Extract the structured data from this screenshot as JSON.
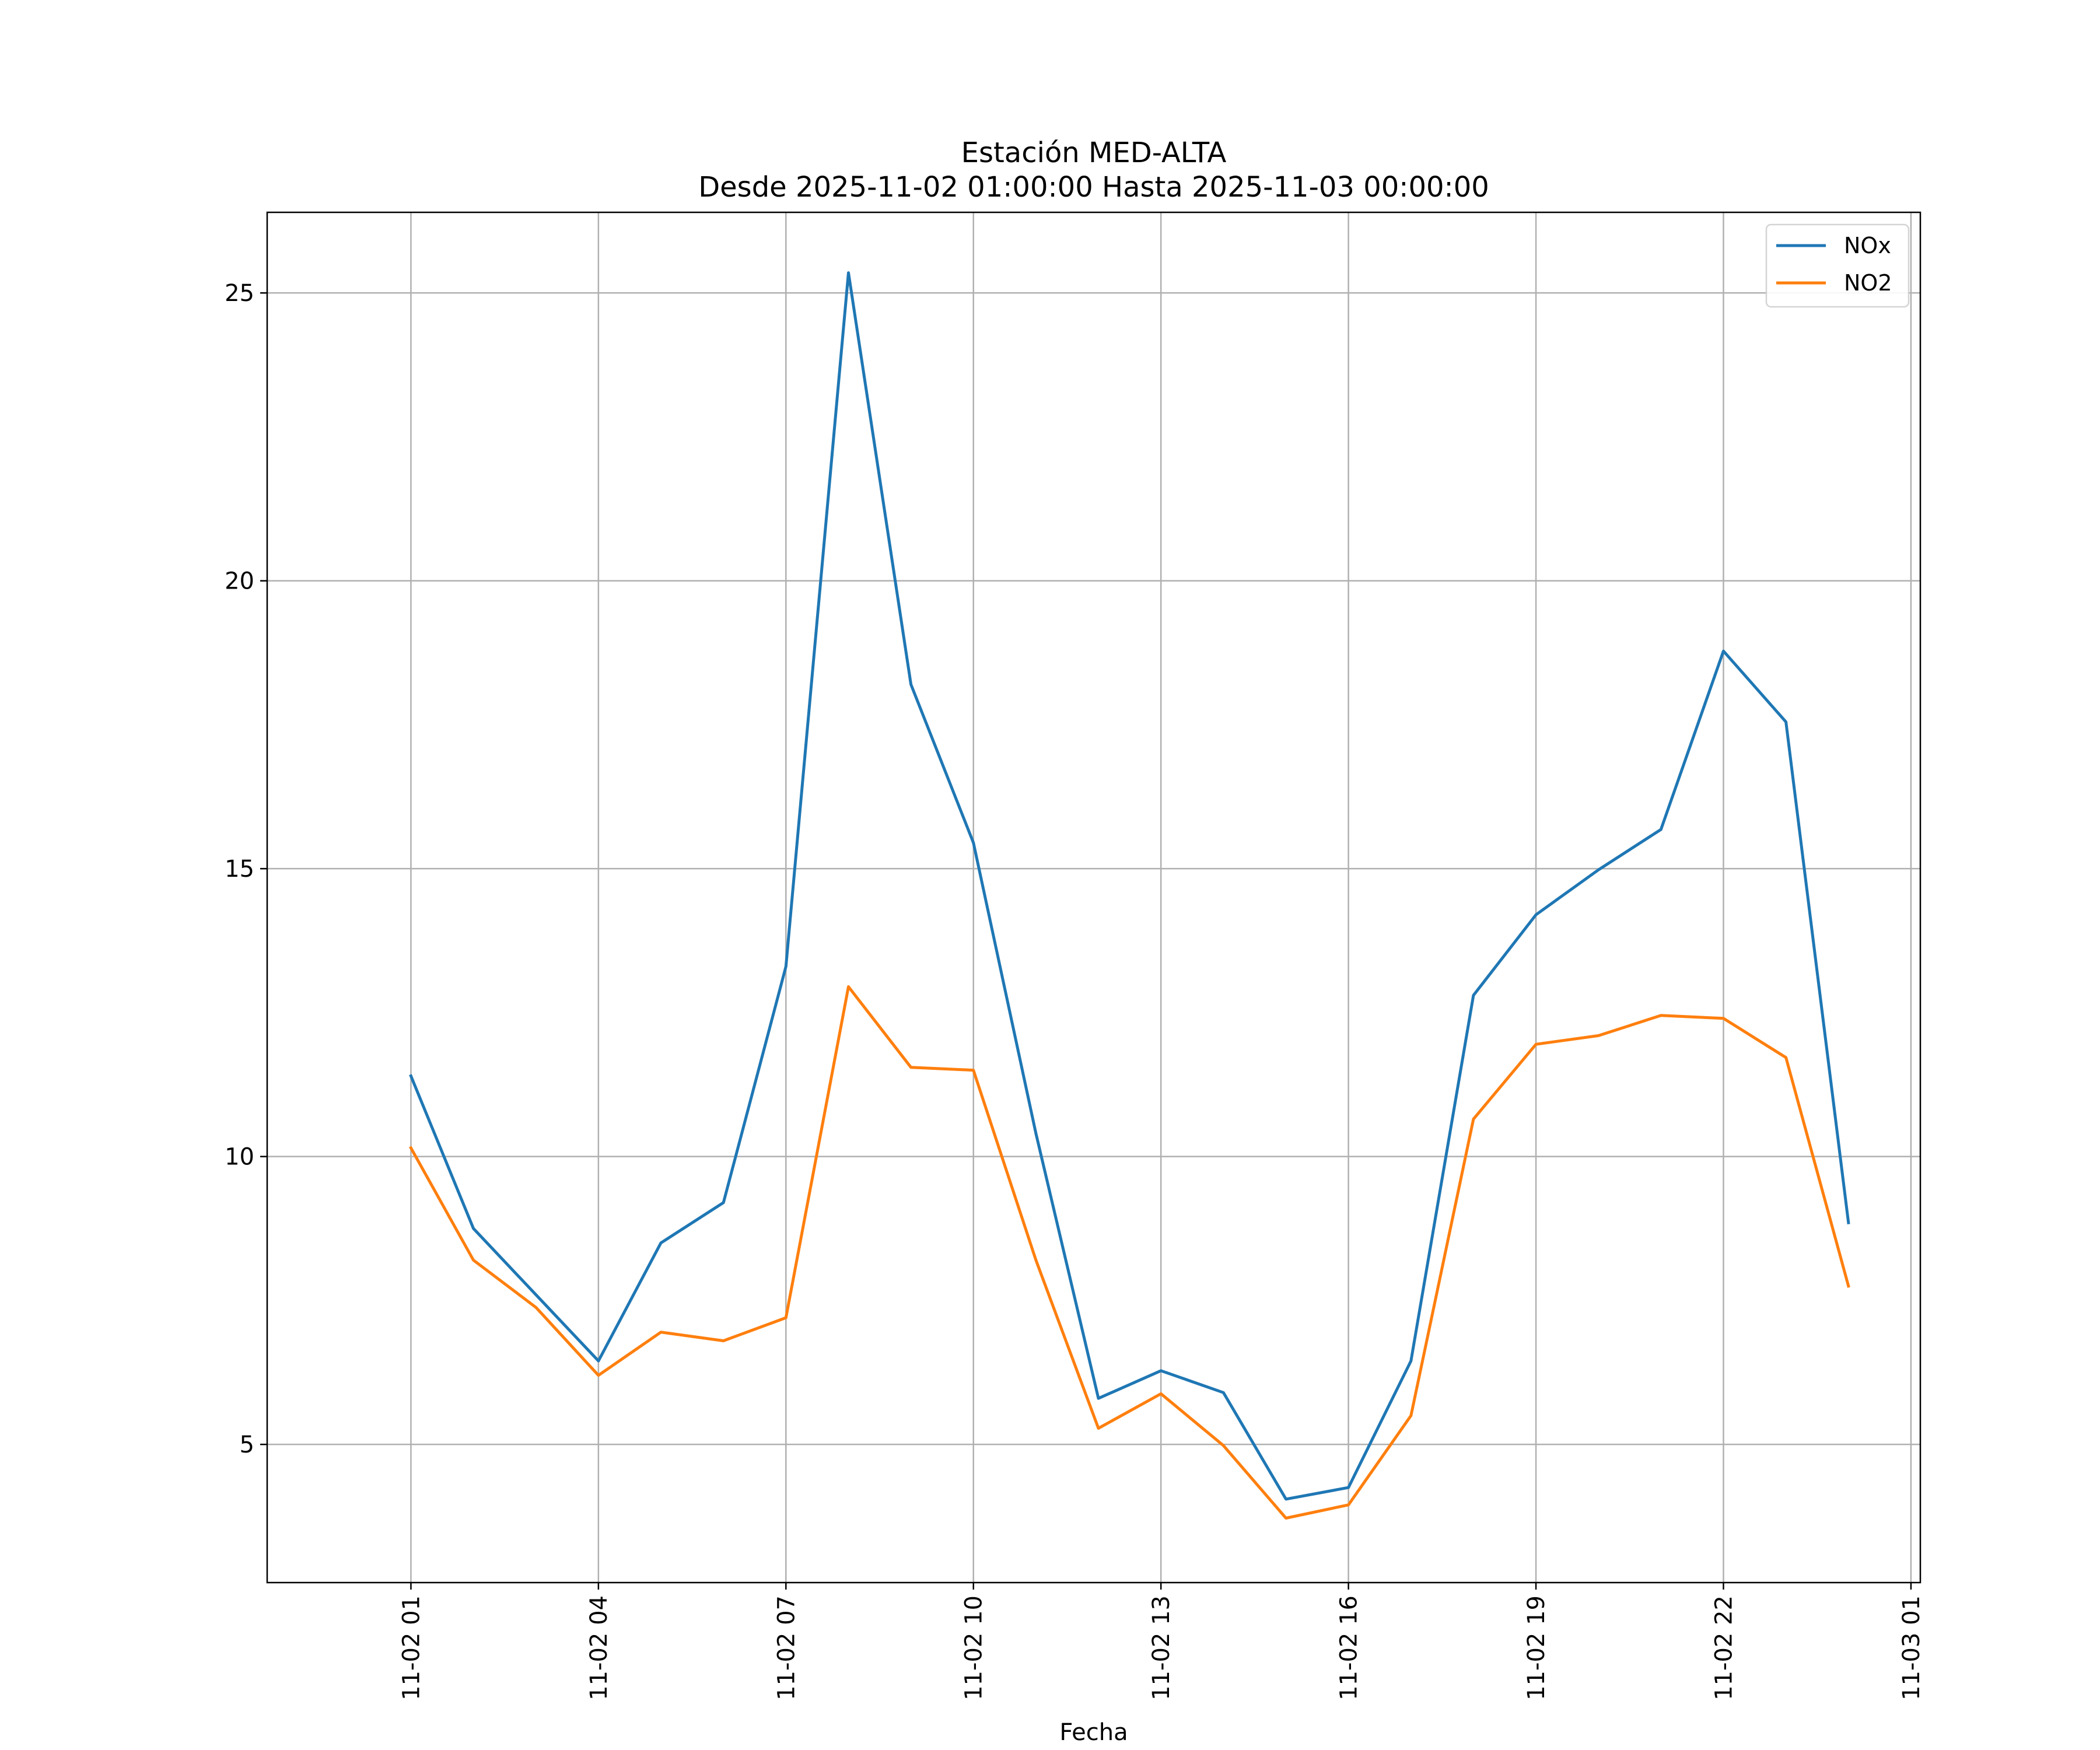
{
  "chart_data": {
    "type": "line",
    "title": "Estación MED-ALTA",
    "subtitle": "Desde 2025-11-02 01:00:00 Hasta 2025-11-03 00:00:00",
    "xlabel": "Fecha",
    "ylabel": "",
    "x_hours": [
      "2025-11-02 01:00",
      "2025-11-02 02:00",
      "2025-11-02 03:00",
      "2025-11-02 04:00",
      "2025-11-02 05:00",
      "2025-11-02 06:00",
      "2025-11-02 07:00",
      "2025-11-02 08:00",
      "2025-11-02 09:00",
      "2025-11-02 10:00",
      "2025-11-02 11:00",
      "2025-11-02 12:00",
      "2025-11-02 13:00",
      "2025-11-02 14:00",
      "2025-11-02 15:00",
      "2025-11-02 16:00",
      "2025-11-02 17:00",
      "2025-11-02 18:00",
      "2025-11-02 19:00",
      "2025-11-02 20:00",
      "2025-11-02 21:00",
      "2025-11-02 22:00",
      "2025-11-02 23:00",
      "2025-11-03 00:00"
    ],
    "x_ticks": [
      "11-02 01",
      "11-02 04",
      "11-02 07",
      "11-02 10",
      "11-02 13",
      "11-02 16",
      "11-02 19",
      "11-02 22",
      "11-03 01"
    ],
    "y_ticks": [
      5,
      10,
      15,
      20,
      25
    ],
    "xlim": [
      "2025-11-01 22:42",
      "2025-11-03 01:09"
    ],
    "ylim": [
      2.6,
      26.4
    ],
    "grid": true,
    "legend": "top-right",
    "series": [
      {
        "name": "NOx",
        "color": "#1f77b4",
        "values": [
          11.4,
          8.75,
          7.6,
          6.45,
          8.5,
          9.2,
          13.3,
          25.35,
          18.2,
          15.45,
          10.4,
          5.8,
          6.28,
          5.9,
          4.05,
          4.25,
          6.45,
          12.8,
          14.2,
          14.98,
          15.68,
          18.78,
          17.55,
          8.85
        ]
      },
      {
        "name": "NO2",
        "color": "#ff7f0e",
        "values": [
          10.15,
          8.2,
          7.38,
          6.2,
          6.95,
          6.8,
          7.2,
          12.95,
          11.55,
          11.5,
          8.2,
          5.28,
          5.88,
          4.98,
          3.72,
          3.95,
          5.5,
          10.65,
          11.95,
          12.1,
          12.45,
          12.4,
          11.72,
          7.75
        ]
      }
    ]
  }
}
